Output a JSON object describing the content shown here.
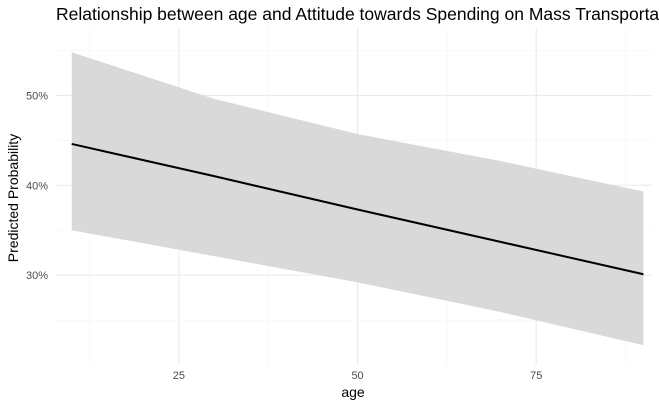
{
  "chart_data": {
    "type": "line",
    "title": "Relationship between age and Attitude towards Spending on Mass Transportation",
    "xlabel": "age",
    "ylabel": "Predicted Probability",
    "xlim": [
      7.8,
      91.2
    ],
    "ylim": [
      0.2,
      0.575
    ],
    "x_ticks": [
      25,
      50,
      75
    ],
    "x_tick_labels": [
      "25",
      "50",
      "75"
    ],
    "x_minor_ticks": [
      12.5,
      37.5,
      62.5,
      87.5
    ],
    "y_ticks": [
      0.3,
      0.4,
      0.5
    ],
    "y_tick_labels": [
      "30%",
      "40%",
      "50%"
    ],
    "y_minor_ticks": [
      0.25,
      0.35,
      0.45,
      0.55
    ],
    "grid": true,
    "series": [
      {
        "name": "Predicted Probability",
        "x": [
          10,
          30,
          50,
          70,
          90
        ],
        "y": [
          0.446,
          0.41,
          0.373,
          0.337,
          0.301
        ],
        "lower": [
          0.35,
          0.321,
          0.292,
          0.259,
          0.222
        ],
        "upper": [
          0.548,
          0.496,
          0.457,
          0.427,
          0.393
        ]
      }
    ],
    "colors": {
      "line": "#000000",
      "ribbon": "#d9d9d9",
      "grid_major": "#ebebeb",
      "grid_minor": "#f3f3f3",
      "tick_text": "#4d4d4d"
    }
  }
}
